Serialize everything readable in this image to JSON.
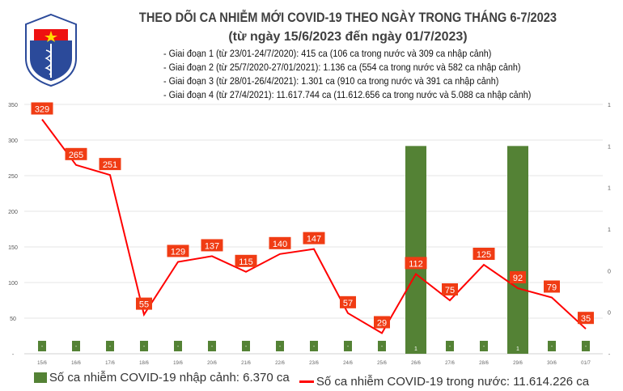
{
  "logo": {
    "top_text": "BỘ Y TẾ",
    "bottom_text": "MINISTRY OF HEALTH"
  },
  "chart_data": {
    "type": "bar+line",
    "title": "THEO DÕI CA NHIỄM MỚI COVID-19 THEO NGÀY TRONG THÁNG 6-7/2023",
    "subtitle": "(từ ngày 15/6/2023 đến ngày 01/7/2023)",
    "notes": [
      "- Giai đoạn 1 (từ 23/01-24/7/2020): 415 ca (106 ca trong nước và 309 ca nhập cảnh)",
      "- Giai đoạn 2 (từ 25/7/2020-27/01/2021): 1.136 ca (554 ca trong nước và 582 ca nhập cảnh)",
      "- Giai đoạn 3 (từ 28/01-26/4/2021): 1.301 ca (910 ca trong nước và 391 ca nhập cảnh)",
      "- Giai đoạn 4 (từ 27/4/2021): 11.617.744 ca (11.612.656 ca trong nước và 5.088 ca nhập cảnh)"
    ],
    "categories": [
      "15/6",
      "16/6",
      "17/6",
      "18/6",
      "19/6",
      "20/6",
      "21/6",
      "22/6",
      "23/6",
      "24/6",
      "25/6",
      "26/6",
      "27/6",
      "28/6",
      "29/6",
      "30/6",
      "01/7"
    ],
    "series": [
      {
        "name": "Số ca nhiễm COVID-19 nhập cảnh: 6.370 ca",
        "type": "bar",
        "axis": "right",
        "color": "#548235",
        "values": [
          0,
          0,
          0,
          0,
          0,
          0,
          0,
          0,
          0,
          0,
          0,
          1,
          0,
          0,
          1,
          0,
          0
        ]
      },
      {
        "name": "Số ca nhiễm COVID-19 trong nước: 11.614.226 ca",
        "type": "line",
        "axis": "left",
        "color": "#ff0000",
        "label_color": "#f03c14",
        "values": [
          329,
          265,
          251,
          55,
          129,
          137,
          115,
          140,
          147,
          57,
          29,
          112,
          75,
          125,
          92,
          79,
          35
        ]
      }
    ],
    "left_axis": {
      "ylim": [
        0,
        350
      ],
      "ticks": [
        "-",
        "50",
        "100",
        "150",
        "200",
        "250",
        "300",
        "350"
      ]
    },
    "right_axis": {
      "ylim": [
        0,
        1.2
      ],
      "ticks": [
        "-",
        "0",
        "0",
        "1",
        "1",
        "1",
        "1"
      ]
    },
    "zero_label": "-",
    "grid": true,
    "legend": "bottom"
  }
}
